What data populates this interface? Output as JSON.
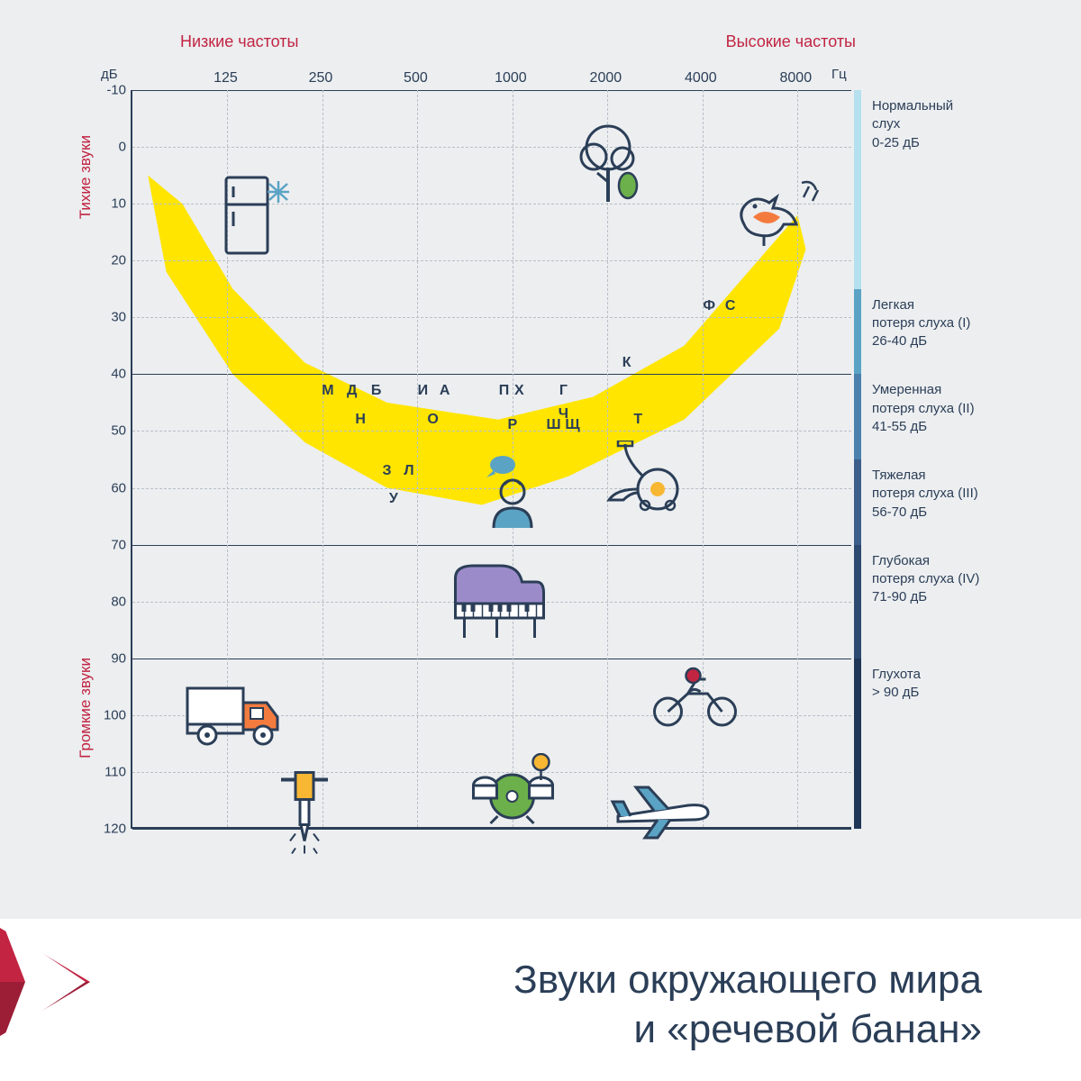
{
  "title_line1": "Звуки окружающего мира",
  "title_line2": "и «речевой банан»",
  "colors": {
    "axis": "#2b3e57",
    "banana": "#ffe500",
    "red": "#c22442",
    "band_light": "#b5e0ee",
    "band_mid": "#5aa3c4",
    "band_dark": "#2b3e57",
    "bg": "#eceef0"
  },
  "labels": {
    "low_freq": "Низкие частоты",
    "high_freq": "Высокие частоты",
    "db": "дБ",
    "hz": "Гц",
    "quiet": "Тихие звуки",
    "loud": "Громкие звуки"
  },
  "y_ticks": [
    -10,
    0,
    10,
    20,
    30,
    40,
    50,
    60,
    70,
    80,
    90,
    100,
    110,
    120
  ],
  "y_solid": [
    -10,
    25,
    40,
    55,
    70,
    90,
    120
  ],
  "x_ticks": [
    125,
    250,
    500,
    1000,
    2000,
    4000,
    8000
  ],
  "x_range": [
    62.5,
    12000
  ],
  "y_range": [
    -10,
    120
  ],
  "categories": [
    {
      "label": "Нормальный\nслух\n0-25 дБ",
      "from": -10,
      "to": 25,
      "color": "#b5e0ee"
    },
    {
      "label": "Легкая\nпотеря слуха (I)\n26-40 дБ",
      "from": 25,
      "to": 40,
      "color": "#5aa3c4"
    },
    {
      "label": "Умеренная\nпотеря слуха (II)\n41-55 дБ",
      "from": 40,
      "to": 55,
      "color": "#4a7fae"
    },
    {
      "label": "Тяжелая\nпотеря слуха (III)\n56-70 дБ",
      "from": 55,
      "to": 70,
      "color": "#3b5f8a"
    },
    {
      "label": "Глубокая\nпотеря слуха (IV)\n71-90 дБ",
      "from": 70,
      "to": 90,
      "color": "#2d4a70"
    },
    {
      "label": "Глухота\n> 90 дБ",
      "from": 90,
      "to": 120,
      "color": "#1f3657"
    }
  ],
  "banana_path_pts": [
    [
      70,
      5
    ],
    [
      80,
      22
    ],
    [
      130,
      40
    ],
    [
      220,
      52
    ],
    [
      400,
      60
    ],
    [
      800,
      63
    ],
    [
      1500,
      58
    ],
    [
      3500,
      48
    ],
    [
      7000,
      32
    ],
    [
      8500,
      18
    ],
    [
      8000,
      12
    ],
    [
      6000,
      20
    ],
    [
      3500,
      35
    ],
    [
      1800,
      44
    ],
    [
      900,
      48
    ],
    [
      400,
      45
    ],
    [
      220,
      38
    ],
    [
      130,
      25
    ],
    [
      90,
      10
    ],
    [
      70,
      5
    ]
  ],
  "letters": [
    {
      "t": "М",
      "f": 260,
      "db": 43
    },
    {
      "t": "Д",
      "f": 310,
      "db": 43
    },
    {
      "t": "Б",
      "f": 370,
      "db": 43
    },
    {
      "t": "Н",
      "f": 330,
      "db": 48
    },
    {
      "t": "И",
      "f": 520,
      "db": 43
    },
    {
      "t": "А",
      "f": 610,
      "db": 43
    },
    {
      "t": "О",
      "f": 560,
      "db": 48
    },
    {
      "t": "З",
      "f": 400,
      "db": 57
    },
    {
      "t": "Л",
      "f": 470,
      "db": 57
    },
    {
      "t": "У",
      "f": 420,
      "db": 62
    },
    {
      "t": "П",
      "f": 940,
      "db": 43
    },
    {
      "t": "Х",
      "f": 1050,
      "db": 43
    },
    {
      "t": "Р",
      "f": 1000,
      "db": 49
    },
    {
      "t": "Г",
      "f": 1450,
      "db": 43
    },
    {
      "t": "Ш",
      "f": 1350,
      "db": 49
    },
    {
      "t": "Ч",
      "f": 1450,
      "db": 47
    },
    {
      "t": "Щ",
      "f": 1550,
      "db": 49
    },
    {
      "t": "К",
      "f": 2300,
      "db": 38
    },
    {
      "t": "Т",
      "f": 2500,
      "db": 48
    },
    {
      "t": "Ф",
      "f": 4200,
      "db": 28
    },
    {
      "t": "С",
      "f": 4900,
      "db": 28
    }
  ],
  "icons": [
    {
      "name": "fridge-icon",
      "f": 155,
      "db": 12,
      "w": 84,
      "h": 92
    },
    {
      "name": "tree-icon",
      "f": 2100,
      "db": 3,
      "w": 90,
      "h": 92
    },
    {
      "name": "bird-icon",
      "f": 6800,
      "db": 12,
      "w": 110,
      "h": 84
    },
    {
      "name": "person-icon",
      "f": 1000,
      "db": 60,
      "w": 78,
      "h": 88
    },
    {
      "name": "vacuum-icon",
      "f": 2600,
      "db": 58,
      "w": 100,
      "h": 80
    },
    {
      "name": "piano-icon",
      "f": 900,
      "db": 80,
      "w": 115,
      "h": 92
    },
    {
      "name": "truck-icon",
      "f": 135,
      "db": 100,
      "w": 120,
      "h": 76
    },
    {
      "name": "motorcycle-icon",
      "f": 3800,
      "db": 97,
      "w": 105,
      "h": 70
    },
    {
      "name": "jackhammer-icon",
      "f": 220,
      "db": 117,
      "w": 80,
      "h": 95
    },
    {
      "name": "drums-icon",
      "f": 1000,
      "db": 113,
      "w": 105,
      "h": 80
    },
    {
      "name": "airplane-icon",
      "f": 3000,
      "db": 117,
      "w": 120,
      "h": 70
    }
  ]
}
